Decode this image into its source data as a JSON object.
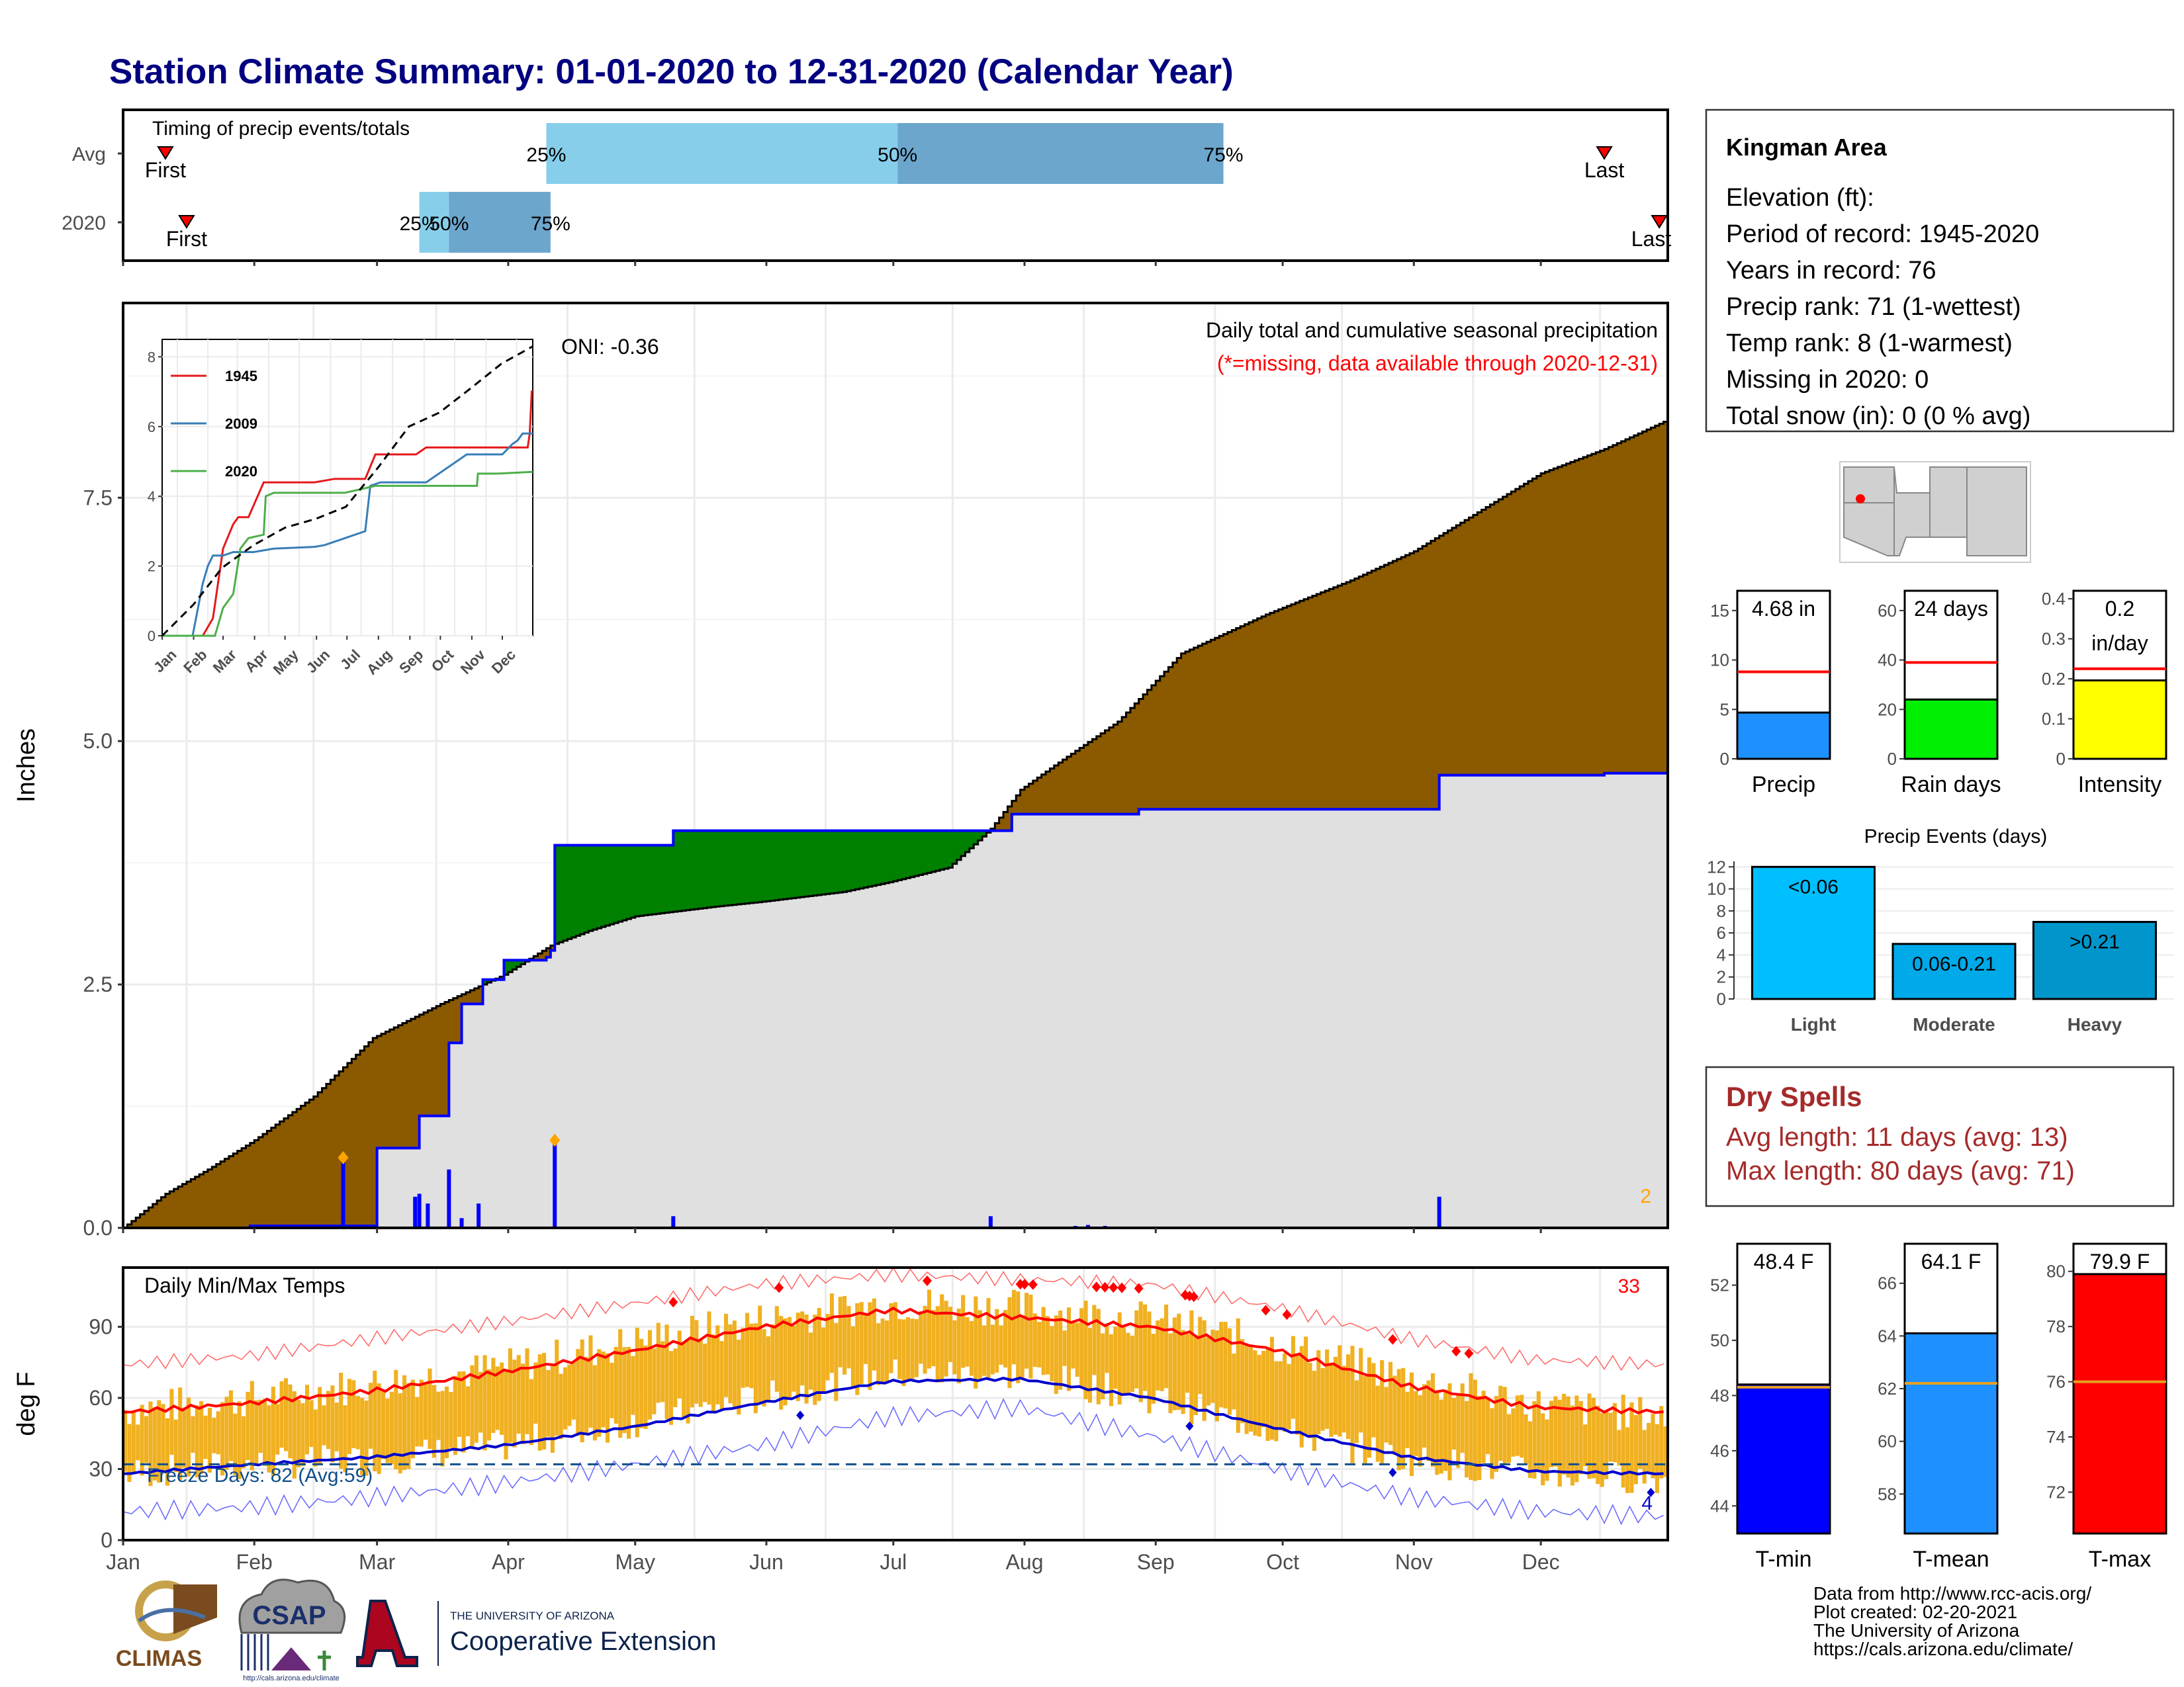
{
  "title": "Station Climate Summary: 01-01-2020 to 12-31-2020 (Calendar Year)",
  "months": [
    "Jan",
    "Feb",
    "Mar",
    "Apr",
    "May",
    "Jun",
    "Jul",
    "Aug",
    "Sep",
    "Oct",
    "Nov",
    "Dec"
  ],
  "timing_panel": {
    "title": "Timing of precip events/totals",
    "rows": [
      {
        "label": "Avg",
        "first_label": "First",
        "last_label": "Last",
        "first_doy": 10,
        "last_doy": 350,
        "p25_label": "25%",
        "p50_label": "50%",
        "p75_label": "75%",
        "p25_doy": 100,
        "p50_doy": 183,
        "p75_doy": 260
      },
      {
        "label": "2020",
        "first_label": "First",
        "last_label": "Last",
        "first_doy": 15,
        "last_doy": 363,
        "p25_label": "25%",
        "p50_label": "50%",
        "p75_label": "75%",
        "p25_doy": 70,
        "p50_doy": 77,
        "p75_doy": 101
      }
    ]
  },
  "chart_data": [
    {
      "id": "cumulative_precip",
      "type": "area",
      "title": "Daily total and cumulative seasonal precipitation",
      "subtitle": "(*=missing, data available through 2020-12-31)",
      "ylabel": "Inches",
      "ylim": [
        0,
        9.5
      ],
      "yticks": [
        0.0,
        2.5,
        5.0,
        7.5
      ],
      "ytick_labels": [
        "0.0",
        "2.5",
        "5.0",
        "7.5"
      ],
      "oni_label": "ONI: -0.36",
      "corner_count": "2",
      "series": [
        {
          "name": "Average cumulative",
          "x": [
            0,
            10,
            20,
            31,
            45,
            59,
            75,
            90,
            101,
            110,
            121,
            140,
            151,
            170,
            181,
            195,
            205,
            212,
            220,
            235,
            250,
            270,
            290,
            305,
            320,
            335,
            350,
            365
          ],
          "values": [
            0,
            0.35,
            0.6,
            0.9,
            1.35,
            1.95,
            2.3,
            2.6,
            2.9,
            3.05,
            3.2,
            3.3,
            3.35,
            3.45,
            3.55,
            3.7,
            4.1,
            4.5,
            4.75,
            5.2,
            5.9,
            6.3,
            6.65,
            6.95,
            7.35,
            7.75,
            8.0,
            8.3
          ]
        },
        {
          "name": "2020 cumulative",
          "x": [
            0,
            20,
            30,
            52,
            60,
            68,
            70,
            77,
            80,
            85,
            90,
            100,
            101,
            102,
            110,
            120,
            130,
            140,
            150,
            160,
            170,
            180,
            192,
            200,
            210,
            220,
            240,
            260,
            290,
            310,
            311,
            330,
            350,
            365
          ],
          "values": [
            0,
            0,
            0.02,
            0.02,
            0.82,
            0.82,
            1.15,
            1.9,
            2.3,
            2.55,
            2.75,
            2.78,
            2.85,
            3.93,
            3.93,
            3.93,
            4.08,
            4.08,
            4.08,
            4.08,
            4.08,
            4.08,
            4.08,
            4.08,
            4.25,
            4.25,
            4.3,
            4.3,
            4.3,
            4.3,
            4.65,
            4.65,
            4.67,
            4.68
          ]
        },
        {
          "name": "Daily precip",
          "x": [
            52,
            69,
            70,
            72,
            77,
            80,
            84,
            102,
            130,
            205,
            225,
            228,
            232,
            311
          ],
          "values": [
            0.72,
            0.32,
            0.35,
            0.25,
            0.6,
            0.1,
            0.25,
            0.9,
            0.12,
            0.12,
            0.02,
            0.03,
            0.02,
            0.32
          ]
        }
      ],
      "inset": {
        "series": [
          {
            "name": "1945",
            "color": "#e41a1c",
            "x": [
              0,
              40,
              50,
              55,
              60,
              70,
              75,
              85,
              100,
              150,
              170,
              200,
              210,
              250,
              260,
              300,
              335,
              345,
              360,
              362,
              364,
              365
            ],
            "values": [
              0,
              0,
              0.5,
              1.5,
              2.5,
              3.2,
              3.4,
              3.4,
              4.4,
              4.4,
              4.5,
              4.5,
              5.2,
              5.2,
              5.4,
              5.4,
              5.4,
              5.4,
              5.4,
              5.8,
              7,
              7
            ]
          },
          {
            "name": "2009",
            "color": "#377eb8",
            "x": [
              0,
              30,
              40,
              45,
              50,
              60,
              70,
              80,
              90,
              110,
              150,
              160,
              170,
              180,
              200,
              205,
              215,
              260,
              300,
              335,
              345,
              350,
              355,
              365
            ],
            "values": [
              0,
              0,
              1.5,
              2.0,
              2.3,
              2.3,
              2.4,
              2.4,
              2.4,
              2.5,
              2.55,
              2.6,
              2.7,
              2.8,
              3.0,
              4.3,
              4.4,
              4.4,
              5.2,
              5.2,
              5.5,
              5.6,
              5.8,
              5.8
            ]
          },
          {
            "name": "2020",
            "color": "#4daf4a",
            "x": [
              0,
              52,
              60,
              70,
              77,
              85,
              100,
              102,
              110,
              150,
              180,
              210,
              240,
              300,
              310,
              311,
              330,
              365
            ],
            "values": [
              0,
              0,
              0.8,
              1.2,
              2.5,
              2.8,
              2.9,
              4.0,
              4.1,
              4.1,
              4.1,
              4.3,
              4.3,
              4.3,
              4.3,
              4.65,
              4.65,
              4.7
            ]
          },
          {
            "name": "avg",
            "color": "#000000",
            "x": [
              0,
              31,
              59,
              90,
              121,
              151,
              181,
              212,
              243,
              273,
              304,
              334,
              365
            ],
            "values": [
              0,
              0.9,
              1.95,
              2.6,
              3.1,
              3.35,
              3.7,
              4.8,
              6.0,
              6.4,
              7.1,
              7.8,
              8.3
            ]
          }
        ],
        "ylim": [
          0,
          8.5
        ],
        "yticks": [
          0,
          2,
          4,
          6,
          8
        ],
        "ytick_labels": [
          "0",
          "2",
          "4",
          "6",
          "8"
        ],
        "xtick_labels": [
          "Jan",
          "Feb",
          "Mar",
          "Apr",
          "May",
          "Jun",
          "Jul",
          "Aug",
          "Sep",
          "Oct",
          "Nov",
          "Dec"
        ]
      }
    },
    {
      "id": "daily_temps",
      "type": "bar",
      "title": "Daily Min/Max Temps",
      "ylabel": "deg F",
      "ylim": [
        0,
        115
      ],
      "yticks": [
        0,
        30,
        60,
        90
      ],
      "ytick_labels": [
        "0",
        "30",
        "60",
        "90"
      ],
      "freeze_label": "Freeze Days: 82 (Avg:59)",
      "freeze_line": 32,
      "hot_count": "33",
      "cold_count": "4",
      "normal_max": {
        "x": [
          0,
          31,
          59,
          90,
          121,
          151,
          181,
          212,
          243,
          273,
          304,
          334,
          365
        ],
        "values": [
          54,
          58,
          63,
          71,
          80,
          90,
          97,
          94,
          90,
          80,
          65,
          56,
          54
        ]
      },
      "normal_min": {
        "x": [
          0,
          31,
          59,
          90,
          121,
          151,
          181,
          212,
          243,
          273,
          304,
          334,
          365
        ],
        "values": [
          28,
          32,
          35,
          40,
          48,
          58,
          67,
          68,
          60,
          47,
          35,
          29,
          28
        ]
      },
      "record_max": {
        "x": [
          0,
          31,
          59,
          90,
          121,
          151,
          181,
          212,
          243,
          273,
          304,
          334,
          365
        ],
        "values": [
          74,
          78,
          85,
          92,
          100,
          108,
          112,
          110,
          108,
          98,
          85,
          76,
          74
        ]
      },
      "record_min": {
        "x": [
          0,
          31,
          59,
          90,
          121,
          151,
          181,
          212,
          243,
          273,
          304,
          334,
          365
        ],
        "values": [
          12,
          14,
          18,
          24,
          32,
          40,
          52,
          56,
          44,
          30,
          18,
          12,
          10
        ]
      },
      "obs_max": {
        "x": [
          0,
          31,
          59,
          90,
          121,
          151,
          181,
          212,
          243,
          273,
          304,
          334,
          365
        ],
        "values": [
          55,
          60,
          66,
          73,
          84,
          93,
          100,
          98,
          93,
          82,
          68,
          57,
          52
        ]
      },
      "obs_min": {
        "x": [
          0,
          31,
          59,
          90,
          121,
          151,
          181,
          212,
          243,
          273,
          304,
          334,
          365
        ],
        "values": [
          28,
          32,
          34,
          40,
          50,
          60,
          70,
          70,
          60,
          46,
          34,
          28,
          26
        ]
      }
    },
    {
      "id": "precip_totals",
      "type": "bar",
      "panels": [
        {
          "name": "Precip",
          "value_label": "4.68 in",
          "value": 4.68,
          "avg": 8.8,
          "ylim": [
            0,
            17
          ],
          "yticks": [
            0,
            5,
            10,
            15
          ],
          "color": "#1e90ff"
        },
        {
          "name": "Rain days",
          "value_label": "24 days",
          "value": 24,
          "avg": 39,
          "ylim": [
            0,
            68
          ],
          "yticks": [
            0,
            20,
            40,
            60
          ],
          "color": "#00ee00"
        },
        {
          "name": "Intensity",
          "value_label": "0.2",
          "value_label2": "in/day",
          "value": 0.196,
          "avg": 0.225,
          "ylim": [
            0,
            0.42
          ],
          "yticks": [
            0.0,
            0.1,
            0.2,
            0.3,
            0.4
          ],
          "color": "#ffff00"
        }
      ]
    },
    {
      "id": "precip_events",
      "type": "bar",
      "title": "Precip Events (days)",
      "categories": [
        "Light",
        "Moderate",
        "Heavy"
      ],
      "bar_labels": [
        "<0.06",
        "0.06-0.21",
        ">0.21"
      ],
      "values": [
        12,
        5,
        7
      ],
      "ylim": [
        0,
        12.5
      ],
      "yticks": [
        0,
        2,
        4,
        6,
        8,
        10,
        12
      ],
      "colors": [
        "#00bfff",
        "#00a9e8",
        "#0096cc"
      ]
    },
    {
      "id": "temp_summary",
      "type": "bar",
      "panels": [
        {
          "name": "T-min",
          "value_label": "48.4 F",
          "value": 48.4,
          "avg": 48.3,
          "ylim": [
            43,
            53.5
          ],
          "yticks": [
            44,
            46,
            48,
            50,
            52
          ],
          "color": "#0000ff"
        },
        {
          "name": "T-mean",
          "value_label": "64.1 F",
          "value": 64.1,
          "avg": 62.2,
          "ylim": [
            56.5,
            67.5
          ],
          "yticks": [
            58,
            60,
            62,
            64,
            66
          ],
          "color": "#1e90ff"
        },
        {
          "name": "T-max",
          "value_label": "79.9 F",
          "value": 79.9,
          "avg": 76,
          "ylim": [
            70.5,
            81
          ],
          "yticks": [
            72,
            74,
            76,
            78,
            80
          ],
          "color": "#ff0000"
        }
      ]
    }
  ],
  "station": {
    "name": "Kingman Area",
    "lines": [
      "Elevation (ft):",
      "Period of record: 1945-2020",
      "Years in record: 76",
      "Precip rank: 71 (1-wettest)",
      "Temp rank: 8 (1-warmest)",
      "Missing in 2020: 0",
      "Total snow (in): 0 (0 % avg)"
    ]
  },
  "dry_spells": {
    "title": "Dry Spells",
    "avg_line": "Avg length: 11 days (avg: 13)",
    "max_line": "Max length: 80 days (avg: 71)"
  },
  "logos": {
    "climas": "CLIMAS",
    "csap": "CSAP",
    "csap_url": "http://cals.arizona.edu/climate",
    "ua_top": "THE UNIVERSITY OF ARIZONA",
    "ua_bottom": "Cooperative Extension"
  },
  "footer": [
    "Data from http://www.rcc-acis.org/",
    "Plot created: 02-20-2021",
    "The University of Arizona",
    "https://cals.arizona.edu/climate/"
  ],
  "colors": {
    "title": "#000080",
    "cum_above": "#8b5a00",
    "cum_below": "#008000",
    "area_bg": "#e0e0e0",
    "temp_bar": "#f0b020",
    "dry": "#a52a2a"
  }
}
